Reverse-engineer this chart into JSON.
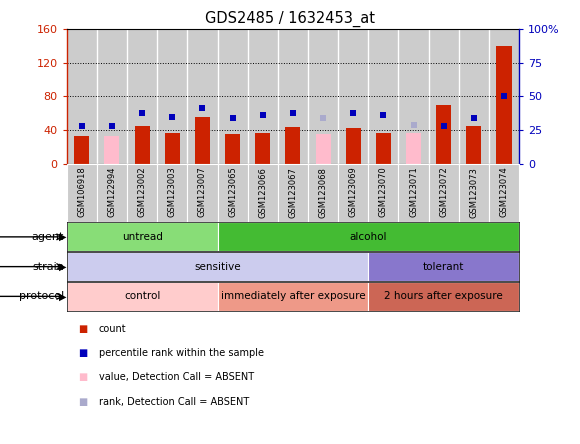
{
  "title": "GDS2485 / 1632453_at",
  "samples": [
    "GSM106918",
    "GSM122994",
    "GSM123002",
    "GSM123003",
    "GSM123007",
    "GSM123065",
    "GSM123066",
    "GSM123067",
    "GSM123068",
    "GSM123069",
    "GSM123070",
    "GSM123071",
    "GSM123072",
    "GSM123073",
    "GSM123074"
  ],
  "count_values": [
    33,
    33,
    45,
    37,
    55,
    35,
    37,
    44,
    35,
    43,
    37,
    37,
    70,
    45,
    140
  ],
  "count_absent": [
    false,
    true,
    false,
    false,
    false,
    false,
    false,
    false,
    true,
    false,
    false,
    true,
    false,
    false,
    false
  ],
  "percentile_values": [
    28,
    28,
    38,
    35,
    41,
    34,
    36,
    38,
    34,
    38,
    36,
    29,
    28,
    34,
    50
  ],
  "percentile_absent": [
    false,
    false,
    false,
    false,
    false,
    false,
    false,
    false,
    true,
    false,
    false,
    true,
    false,
    false,
    false
  ],
  "left_ylim": [
    0,
    160
  ],
  "right_ylim": [
    0,
    100
  ],
  "left_yticks": [
    0,
    40,
    80,
    120,
    160
  ],
  "right_yticks": [
    0,
    25,
    50,
    75,
    100
  ],
  "right_yticklabels": [
    "0",
    "25",
    "50",
    "75",
    "100%"
  ],
  "color_count": "#cc2200",
  "color_count_absent": "#ffbbcc",
  "color_percentile": "#0000bb",
  "color_percentile_absent": "#aaaacc",
  "agent_groups": [
    {
      "label": "untread",
      "start": 0,
      "end": 5,
      "color": "#88dd77"
    },
    {
      "label": "alcohol",
      "start": 5,
      "end": 15,
      "color": "#44bb33"
    }
  ],
  "strain_groups": [
    {
      "label": "sensitive",
      "start": 0,
      "end": 10,
      "color": "#ccccee"
    },
    {
      "label": "tolerant",
      "start": 10,
      "end": 15,
      "color": "#8877cc"
    }
  ],
  "protocol_groups": [
    {
      "label": "control",
      "start": 0,
      "end": 5,
      "color": "#ffcccc"
    },
    {
      "label": "immediately after exposure",
      "start": 5,
      "end": 10,
      "color": "#ee9988"
    },
    {
      "label": "2 hours after exposure",
      "start": 10,
      "end": 15,
      "color": "#cc6655"
    }
  ],
  "bg_color": "#cccccc",
  "cell_sep_color": "#ffffff",
  "dotted_lines": [
    40,
    80,
    120
  ],
  "bar_width": 0.5,
  "percentile_marker_size": 5,
  "legend_items": [
    {
      "label": "count",
      "color": "#cc2200",
      "absent": false
    },
    {
      "label": "percentile rank within the sample",
      "color": "#0000bb",
      "absent": false
    },
    {
      "label": "value, Detection Call = ABSENT",
      "color": "#ffbbcc",
      "absent": true
    },
    {
      "label": "rank, Detection Call = ABSENT",
      "color": "#aaaacc",
      "absent": true
    }
  ]
}
